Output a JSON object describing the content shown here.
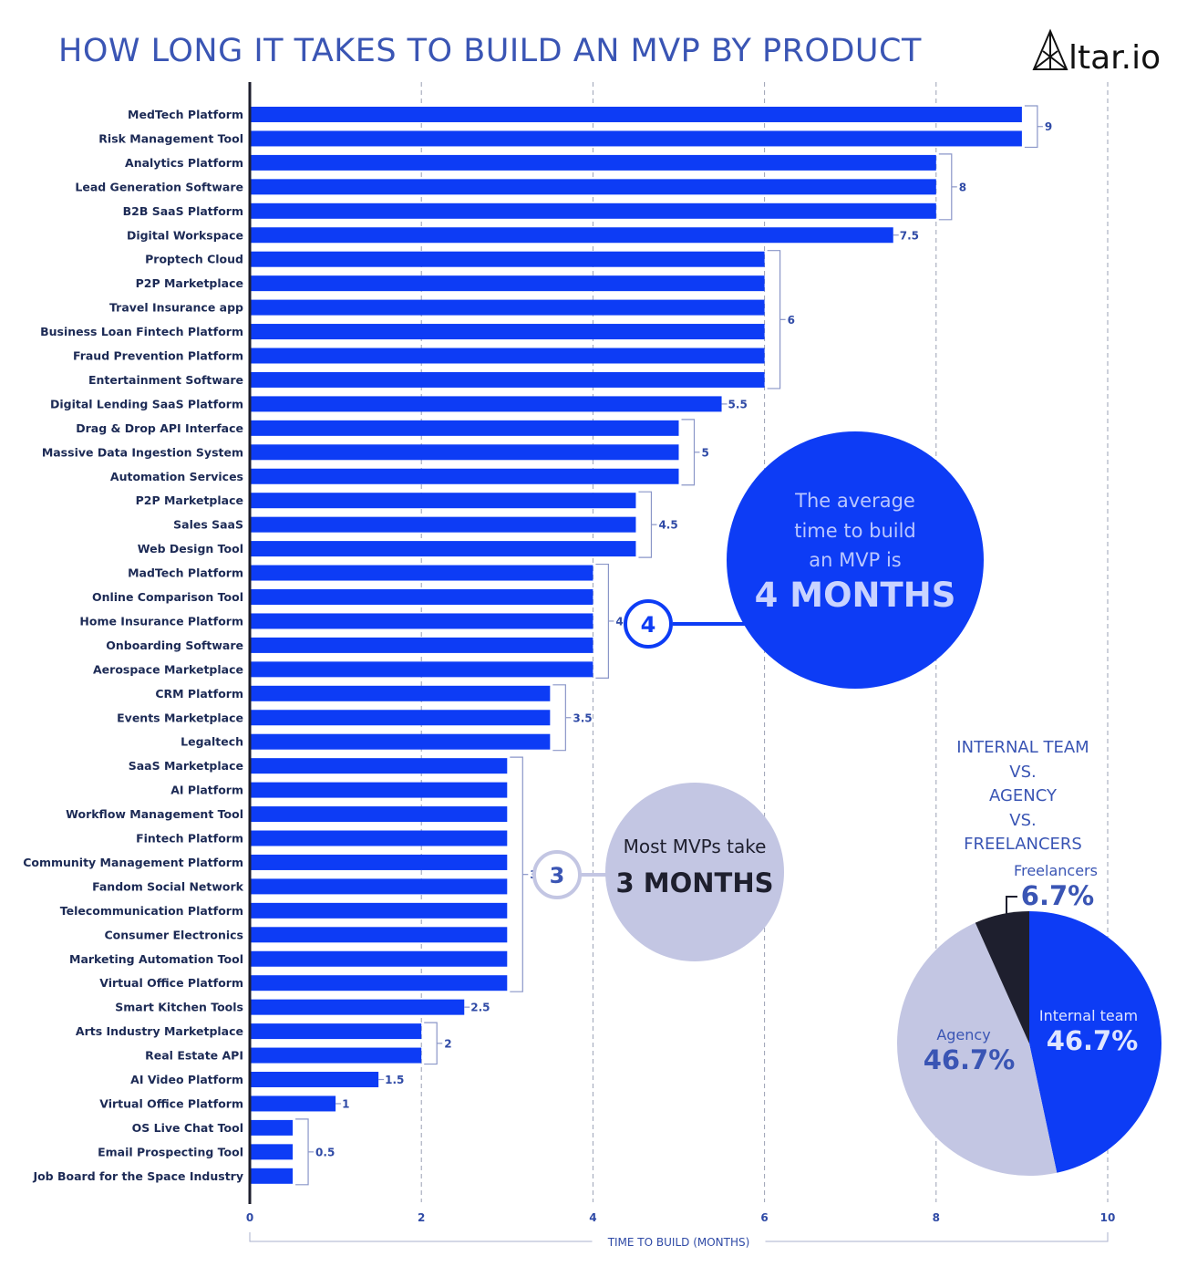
{
  "title": "HOW LONG IT TAKES TO BUILD AN MVP BY PRODUCT",
  "logo_text": "Altar.io",
  "colors": {
    "bar": "#0d3cf5",
    "accent_text": "#3a55b4",
    "bracket": "#8a96c8",
    "light_bubble": "#c3c6e3",
    "dark": "#1e1f2e"
  },
  "chart_data": [
    {
      "type": "bar",
      "orientation": "horizontal",
      "xlabel": "TIME TO BUILD (MONTHS)",
      "xlim": [
        0,
        10
      ],
      "xticks": [
        0,
        2,
        4,
        6,
        8,
        10
      ],
      "grid": "vertical dashed",
      "categories": [
        "MedTech Platform",
        "Risk Management Tool",
        "Analytics Platform",
        "Lead Generation Software",
        "B2B SaaS Platform",
        "Digital Workspace",
        "Proptech Cloud",
        "P2P Marketplace",
        "Travel Insurance app",
        "Business Loan Fintech Platform",
        "Fraud Prevention Platform",
        "Entertainment Software",
        "Digital Lending SaaS Platform",
        "Drag & Drop API Interface",
        "Massive Data Ingestion System",
        "Automation Services",
        "P2P Marketplace",
        "Sales SaaS",
        "Web Design Tool",
        "MadTech Platform",
        "Online Comparison Tool",
        "Home Insurance Platform",
        "Onboarding Software",
        "Aerospace Marketplace",
        "CRM Platform",
        "Events Marketplace",
        "Legaltech",
        "SaaS Marketplace",
        "AI Platform",
        "Workflow Management Tool",
        "Fintech Platform",
        "Community Management Platform",
        "Fandom Social Network",
        "Telecommunication Platform",
        "Consumer Electronics",
        "Marketing Automation Tool",
        "Virtual Office Platform",
        "Smart Kitchen Tools",
        "Arts Industry Marketplace",
        "Real Estate API",
        "AI Video Platform",
        "Virtual Office Platform",
        "OS Live Chat Tool",
        "Email Prospecting Tool",
        "Job Board for the Space Industry"
      ],
      "values": [
        9,
        9,
        8,
        8,
        8,
        7.5,
        6,
        6,
        6,
        6,
        6,
        6,
        5.5,
        5,
        5,
        5,
        4.5,
        4.5,
        4.5,
        4,
        4,
        4,
        4,
        4,
        3.5,
        3.5,
        3.5,
        3,
        3,
        3,
        3,
        3,
        3,
        3,
        3,
        3,
        3,
        2.5,
        2,
        2,
        1.5,
        1,
        0.5,
        0.5,
        0.5
      ],
      "group_labels": [
        "9",
        "8",
        "7.5",
        "6",
        "5.5",
        "5",
        "4.5",
        "4",
        "3.5",
        "3",
        "2.5",
        "2",
        "1.5",
        "1",
        "0.5"
      ]
    },
    {
      "type": "pie",
      "title": "INTERNAL TEAM VS. AGENCY VS. FREELANCERS",
      "slices": [
        {
          "label": "Internal team",
          "value": 46.7,
          "display": "46.7%",
          "color": "#0d3cf5"
        },
        {
          "label": "Agency",
          "value": 46.7,
          "display": "46.7%",
          "color": "#c3c6e3"
        },
        {
          "label": "Freelancers",
          "value": 6.7,
          "display": "6.7%",
          "color": "#1e1f2e"
        }
      ]
    }
  ],
  "callouts": {
    "average": {
      "lines": [
        "The average",
        "time to build",
        "an MVP is"
      ],
      "emphasis": "4 MONTHS",
      "marker": "4"
    },
    "most": {
      "line": "Most MVPs take",
      "emphasis": "3 MONTHS",
      "marker": "3"
    }
  },
  "pie_title_lines": [
    "INTERNAL TEAM",
    "VS.",
    "AGENCY",
    "VS.",
    "FREELANCERS"
  ]
}
